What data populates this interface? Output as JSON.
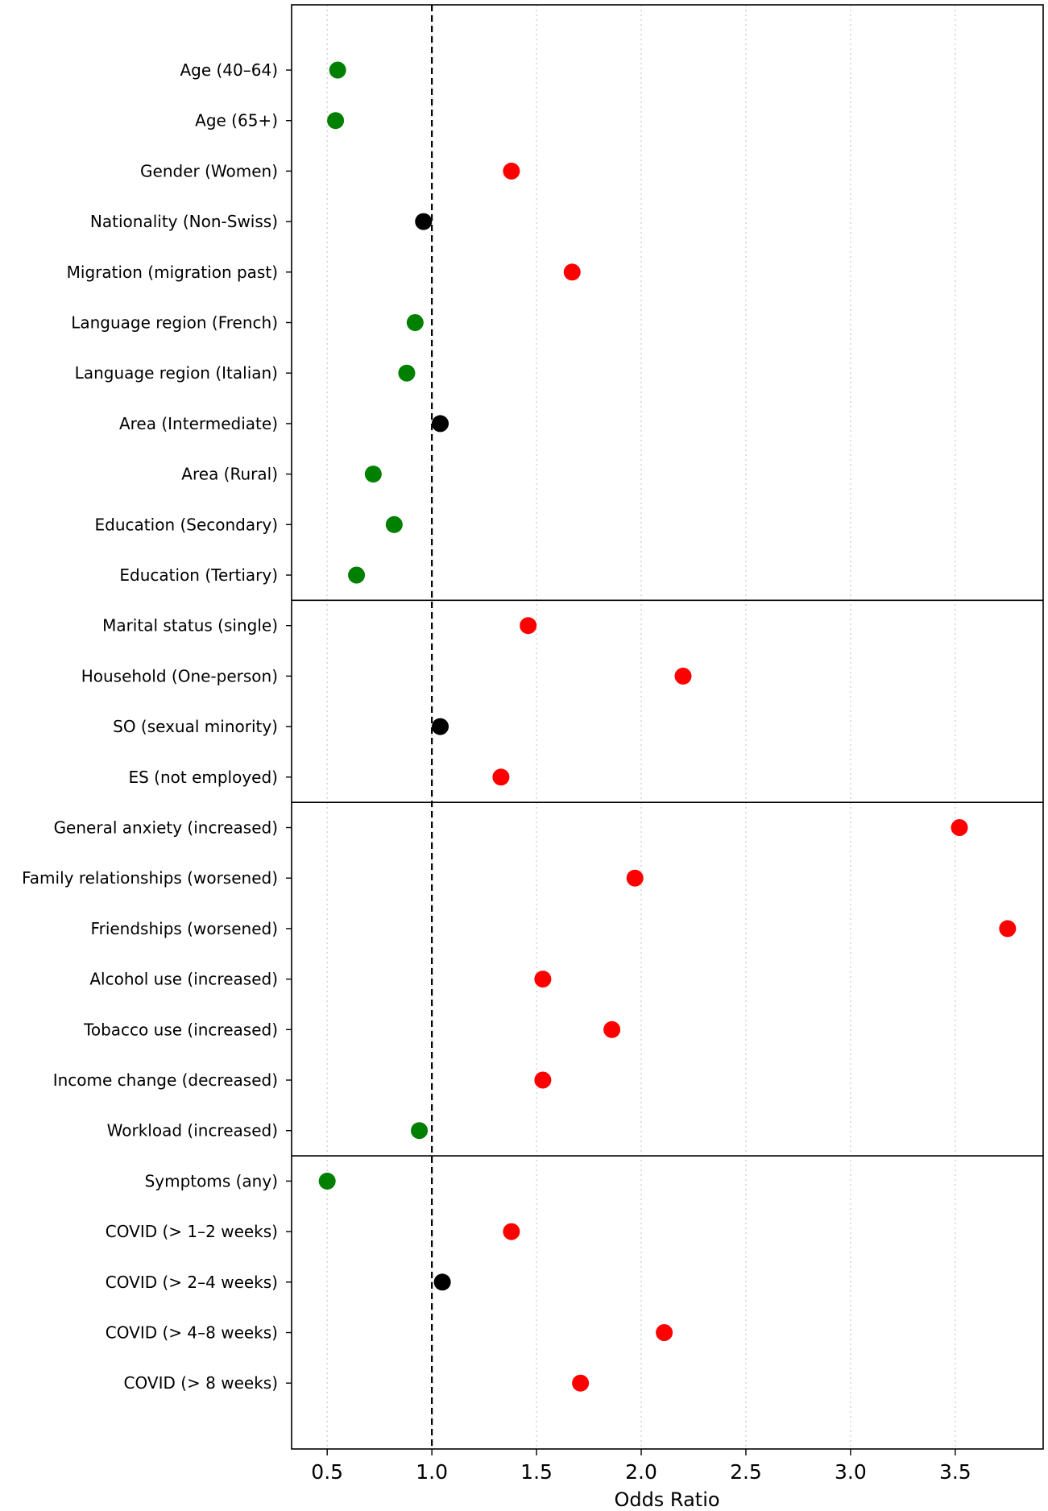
{
  "chart_data": {
    "type": "scatter",
    "title": "",
    "xlabel": "Odds Ratio",
    "ylabel": "",
    "xlim": [
      0.33,
      3.92
    ],
    "xticks": [
      "0.5",
      "1.0",
      "1.5",
      "2.0",
      "2.5",
      "3.0",
      "3.5"
    ],
    "xtick_values": [
      0.5,
      1.0,
      1.5,
      2.0,
      2.5,
      3.0,
      3.5
    ],
    "reference_line": 1.0,
    "grid": "vertical dotted",
    "group_separators_after_index": [
      10,
      14,
      21
    ],
    "colors": {
      "lower": "#008000",
      "higher": "#ff0000",
      "neutral": "#000000"
    },
    "points": [
      {
        "label": "Age (40–64)",
        "value": 0.55,
        "group": "lower"
      },
      {
        "label": "Age (65+)",
        "value": 0.54,
        "group": "lower"
      },
      {
        "label": "Gender (Women)",
        "value": 1.38,
        "group": "higher"
      },
      {
        "label": "Nationality (Non-Swiss)",
        "value": 0.96,
        "group": "neutral"
      },
      {
        "label": "Migration (migration past)",
        "value": 1.67,
        "group": "higher"
      },
      {
        "label": "Language region (French)",
        "value": 0.92,
        "group": "lower"
      },
      {
        "label": "Language region (Italian)",
        "value": 0.88,
        "group": "lower"
      },
      {
        "label": "Area (Intermediate)",
        "value": 1.04,
        "group": "neutral"
      },
      {
        "label": "Area (Rural)",
        "value": 0.72,
        "group": "lower"
      },
      {
        "label": "Education (Secondary)",
        "value": 0.82,
        "group": "lower"
      },
      {
        "label": "Education (Tertiary)",
        "value": 0.64,
        "group": "lower"
      },
      {
        "label": "Marital status (single)",
        "value": 1.46,
        "group": "higher"
      },
      {
        "label": "Household (One-person)",
        "value": 2.2,
        "group": "higher"
      },
      {
        "label": "SO (sexual minority)",
        "value": 1.04,
        "group": "neutral"
      },
      {
        "label": "ES (not employed)",
        "value": 1.33,
        "group": "higher"
      },
      {
        "label": "General anxiety (increased)",
        "value": 3.52,
        "group": "higher"
      },
      {
        "label": "Family relationships (worsened)",
        "value": 1.97,
        "group": "higher"
      },
      {
        "label": "Friendships (worsened)",
        "value": 3.75,
        "group": "higher"
      },
      {
        "label": "Alcohol use (increased)",
        "value": 1.53,
        "group": "higher"
      },
      {
        "label": "Tobacco use (increased)",
        "value": 1.86,
        "group": "higher"
      },
      {
        "label": "Income change (decreased)",
        "value": 1.53,
        "group": "higher"
      },
      {
        "label": "Workload (increased)",
        "value": 0.94,
        "group": "lower"
      },
      {
        "label": "Symptoms (any)",
        "value": 0.5,
        "group": "lower"
      },
      {
        "label": "COVID (> 1–2 weeks)",
        "value": 1.38,
        "group": "higher"
      },
      {
        "label": "COVID (> 2–4 weeks)",
        "value": 1.05,
        "group": "neutral"
      },
      {
        "label": "COVID (> 4–8 weeks)",
        "value": 2.11,
        "group": "higher"
      },
      {
        "label": "COVID (> 8 weeks)",
        "value": 1.71,
        "group": "higher"
      }
    ]
  }
}
